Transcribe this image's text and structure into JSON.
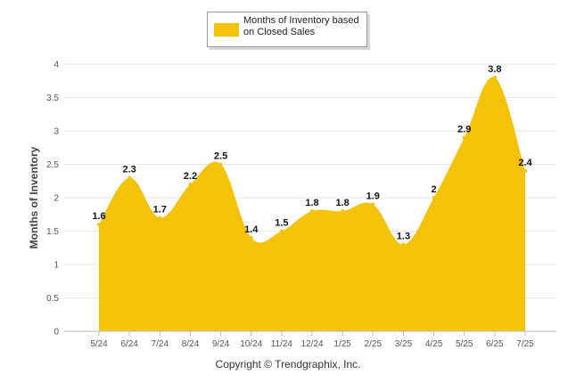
{
  "legend": {
    "label": "Months of Inventory based on Closed Sales"
  },
  "copyright": "Copyright © Trendgraphix, Inc.",
  "chart_data": {
    "type": "area",
    "categories": [
      "5/24",
      "6/24",
      "7/24",
      "8/24",
      "9/24",
      "10/24",
      "11/24",
      "12/24",
      "1/25",
      "2/25",
      "3/25",
      "4/25",
      "5/25",
      "6/25",
      "7/25"
    ],
    "series": [
      {
        "name": "Months of Inventory based on Closed Sales",
        "values": [
          1.6,
          2.3,
          1.7,
          2.2,
          2.5,
          1.4,
          1.5,
          1.8,
          1.8,
          1.9,
          1.3,
          2,
          2.9,
          3.8,
          2.4
        ],
        "data_labels": [
          "1.6",
          "2.3",
          "1.7",
          "2.2",
          "2.5",
          "1.4",
          "1.5",
          "1.8",
          "1.8",
          "1.9",
          "1.3",
          "2",
          "2.9",
          "3.8",
          "2.4"
        ]
      }
    ],
    "ylabel": "Months of Inventory",
    "xlabel": "",
    "ylim": [
      0,
      4
    ],
    "yticks": [
      "0",
      "0.5",
      "1",
      "1.5",
      "2",
      "2.5",
      "3",
      "3.5",
      "4"
    ],
    "grid": true,
    "legend_position": "top-center",
    "colors": {
      "area": "#f5c20a",
      "grid": "#e6e6e6",
      "axis": "#bbbbbb"
    }
  }
}
